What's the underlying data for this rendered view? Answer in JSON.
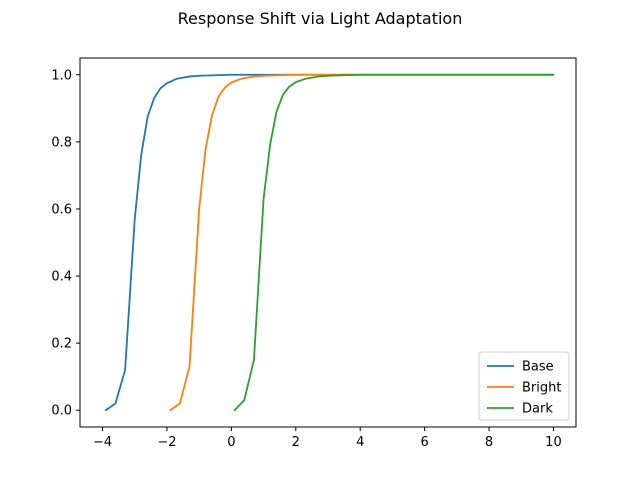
{
  "chart_data": {
    "type": "line",
    "title": "Response Shift via Light Adaptation",
    "xlabel": "",
    "ylabel": "",
    "xlim": [
      -4.7,
      10.7
    ],
    "ylim": [
      -0.05,
      1.05
    ],
    "xticks": [
      -4,
      -2,
      0,
      2,
      4,
      6,
      8,
      10
    ],
    "yticks": [
      0.0,
      0.2,
      0.4,
      0.6,
      0.8,
      1.0
    ],
    "xtick_labels": [
      "−4",
      "−2",
      "0",
      "2",
      "4",
      "6",
      "8",
      "10"
    ],
    "ytick_labels": [
      "0.0",
      "0.2",
      "0.4",
      "0.6",
      "0.8",
      "1.0"
    ],
    "grid": false,
    "legend_position": "lower right",
    "series": [
      {
        "name": "Base",
        "color": "#1f77b4",
        "x": [
          -3.9,
          -3.6,
          -3.3,
          -3.0,
          -2.8,
          -2.6,
          -2.4,
          -2.2,
          -2.0,
          -1.7,
          -1.3,
          -1.0,
          0,
          2,
          4,
          6,
          8,
          10
        ],
        "y": [
          0.0,
          0.02,
          0.12,
          0.57,
          0.76,
          0.875,
          0.93,
          0.96,
          0.975,
          0.988,
          0.995,
          0.997,
          1.0,
          1.0,
          1.0,
          1.0,
          1.0,
          1.0
        ]
      },
      {
        "name": "Bright",
        "color": "#ff7f0e",
        "x": [
          -1.9,
          -1.6,
          -1.3,
          -1.0,
          -0.8,
          -0.6,
          -0.4,
          -0.2,
          0.0,
          0.3,
          0.7,
          1.0,
          2,
          4,
          6,
          8,
          10
        ],
        "y": [
          0.0,
          0.02,
          0.13,
          0.6,
          0.78,
          0.88,
          0.935,
          0.962,
          0.977,
          0.988,
          0.995,
          0.997,
          1.0,
          1.0,
          1.0,
          1.0,
          1.0
        ]
      },
      {
        "name": "Dark",
        "color": "#2ca02c",
        "x": [
          0.1,
          0.4,
          0.7,
          1.0,
          1.2,
          1.4,
          1.6,
          1.8,
          2.0,
          2.3,
          2.7,
          3.0,
          4,
          6,
          8,
          10
        ],
        "y": [
          0.0,
          0.03,
          0.15,
          0.63,
          0.79,
          0.89,
          0.94,
          0.965,
          0.978,
          0.988,
          0.995,
          0.997,
          1.0,
          1.0,
          1.0,
          1.0
        ]
      }
    ]
  }
}
